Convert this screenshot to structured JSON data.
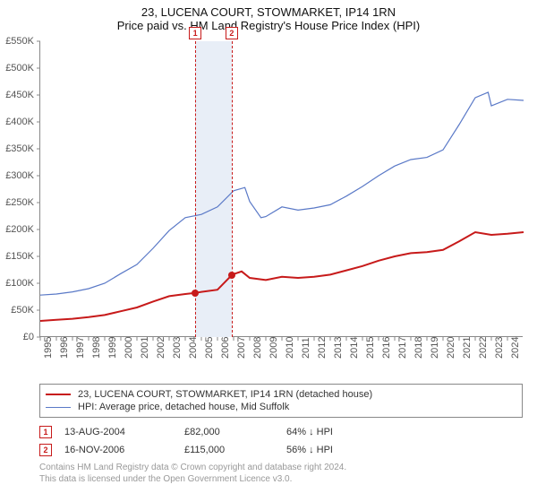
{
  "title": {
    "line1": "23, LUCENA COURT, STOWMARKET, IP14 1RN",
    "line2": "Price paid vs. HM Land Registry's House Price Index (HPI)"
  },
  "chart": {
    "type": "line",
    "background_color": "#ffffff",
    "band_color": "#e8eef7",
    "axis_color": "#888888",
    "dash_color": "#c71a1a",
    "x": {
      "min": 1995,
      "max": 2025,
      "step": 1,
      "labels": [
        "1995",
        "1996",
        "1997",
        "1998",
        "1999",
        "2000",
        "2001",
        "2002",
        "2003",
        "2004",
        "2005",
        "2006",
        "2007",
        "2008",
        "2009",
        "2010",
        "2011",
        "2012",
        "2013",
        "2014",
        "2015",
        "2016",
        "2017",
        "2018",
        "2019",
        "2020",
        "2021",
        "2022",
        "2023",
        "2024"
      ]
    },
    "y": {
      "min": 0,
      "max": 550000,
      "step": 50000,
      "labels": [
        "£0",
        "£50K",
        "£100K",
        "£150K",
        "£200K",
        "£250K",
        "£300K",
        "£350K",
        "£400K",
        "£450K",
        "£500K",
        "£550K"
      ]
    },
    "sale_band": {
      "from": 2004.6,
      "to": 2006.9
    },
    "sale_markers": [
      {
        "id": "1",
        "x": 2004.62,
        "label_y": -16
      },
      {
        "id": "2",
        "x": 2006.88,
        "label_y": -16
      }
    ],
    "sale_points": [
      {
        "x": 2004.62,
        "y": 82000
      },
      {
        "x": 2006.88,
        "y": 115000
      }
    ],
    "series": [
      {
        "name": "property",
        "label": "23, LUCENA COURT, STOWMARKET, IP14 1RN (detached house)",
        "color": "#c71a1a",
        "width": 2,
        "points": [
          [
            1995,
            30000
          ],
          [
            1996,
            32000
          ],
          [
            1997,
            34000
          ],
          [
            1998,
            37000
          ],
          [
            1999,
            41000
          ],
          [
            2000,
            48000
          ],
          [
            2001,
            55000
          ],
          [
            2002,
            66000
          ],
          [
            2003,
            76000
          ],
          [
            2004,
            80000
          ],
          [
            2004.62,
            82000
          ],
          [
            2005,
            84000
          ],
          [
            2006,
            88000
          ],
          [
            2006.88,
            115000
          ],
          [
            2007,
            117000
          ],
          [
            2007.5,
            122000
          ],
          [
            2008,
            110000
          ],
          [
            2009,
            106000
          ],
          [
            2010,
            112000
          ],
          [
            2011,
            110000
          ],
          [
            2012,
            112000
          ],
          [
            2013,
            116000
          ],
          [
            2014,
            124000
          ],
          [
            2015,
            132000
          ],
          [
            2016,
            142000
          ],
          [
            2017,
            150000
          ],
          [
            2018,
            156000
          ],
          [
            2019,
            158000
          ],
          [
            2020,
            162000
          ],
          [
            2021,
            178000
          ],
          [
            2022,
            195000
          ],
          [
            2023,
            190000
          ],
          [
            2024,
            192000
          ],
          [
            2025,
            195000
          ]
        ]
      },
      {
        "name": "hpi",
        "label": "HPI: Average price, detached house, Mid Suffolk",
        "color": "#5a79c7",
        "width": 1.2,
        "points": [
          [
            1995,
            78000
          ],
          [
            1996,
            80000
          ],
          [
            1997,
            84000
          ],
          [
            1998,
            90000
          ],
          [
            1999,
            100000
          ],
          [
            2000,
            118000
          ],
          [
            2001,
            135000
          ],
          [
            2002,
            165000
          ],
          [
            2003,
            198000
          ],
          [
            2004,
            222000
          ],
          [
            2005,
            228000
          ],
          [
            2006,
            242000
          ],
          [
            2007,
            272000
          ],
          [
            2007.7,
            278000
          ],
          [
            2008,
            252000
          ],
          [
            2008.7,
            222000
          ],
          [
            2009,
            224000
          ],
          [
            2010,
            242000
          ],
          [
            2011,
            236000
          ],
          [
            2012,
            240000
          ],
          [
            2013,
            246000
          ],
          [
            2014,
            262000
          ],
          [
            2015,
            280000
          ],
          [
            2016,
            300000
          ],
          [
            2017,
            318000
          ],
          [
            2018,
            330000
          ],
          [
            2019,
            334000
          ],
          [
            2020,
            348000
          ],
          [
            2021,
            395000
          ],
          [
            2022,
            445000
          ],
          [
            2022.8,
            455000
          ],
          [
            2023,
            430000
          ],
          [
            2024,
            442000
          ],
          [
            2025,
            440000
          ]
        ]
      }
    ]
  },
  "legend": {
    "series1": "23, LUCENA COURT, STOWMARKET, IP14 1RN (detached house)",
    "series2": "HPI: Average price, detached house, Mid Suffolk"
  },
  "sales_table": [
    {
      "id": "1",
      "date": "13-AUG-2004",
      "price": "£82,000",
      "pct": "64% ↓ HPI"
    },
    {
      "id": "2",
      "date": "16-NOV-2006",
      "price": "£115,000",
      "pct": "56% ↓ HPI"
    }
  ],
  "footer": {
    "line1": "Contains HM Land Registry data © Crown copyright and database right 2024.",
    "line2": "This data is licensed under the Open Government Licence v3.0."
  }
}
